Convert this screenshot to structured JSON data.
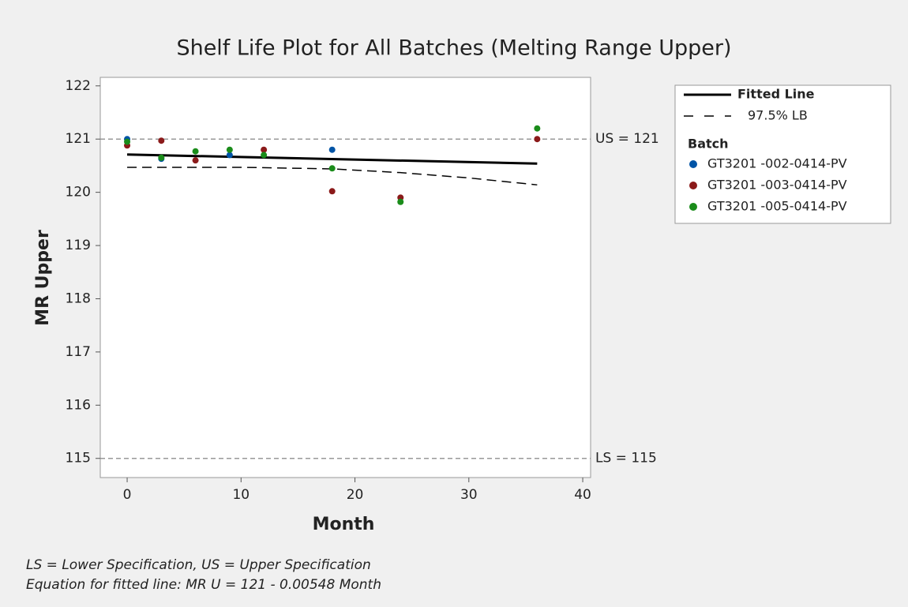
{
  "chart_data": {
    "type": "scatter",
    "title": "Shelf Life Plot for All Batches (Melting Range Upper)",
    "x_label": "Month",
    "y_label": "MR Upper",
    "xlim": [
      -2.36,
      40.69
    ],
    "xticks": [
      0,
      10,
      20,
      30,
      40
    ],
    "ylim": [
      114.64,
      122.16
    ],
    "yticks": [
      115,
      116,
      117,
      118,
      119,
      120,
      121,
      122
    ],
    "reference_lines": [
      {
        "value": 121,
        "label": "US = 121"
      },
      {
        "value": 115,
        "label": "LS = 115"
      }
    ],
    "legend_title": "Batch",
    "legend": "right",
    "series": [
      {
        "name": "Fitted Line",
        "kind": "line",
        "style": "solid",
        "color": "#000000",
        "x": [
          0,
          36
        ],
        "values": [
          120.71,
          120.54
        ]
      },
      {
        "name": "97.5% LB",
        "kind": "line",
        "style": "dashed",
        "color": "#000000",
        "x": [
          0,
          10,
          18,
          24,
          30,
          36
        ],
        "values": [
          120.47,
          120.47,
          120.44,
          120.37,
          120.27,
          120.14
        ]
      },
      {
        "name": "GT3201 -002-0414-PV",
        "kind": "scatter",
        "color": "#0054a6",
        "x": [
          0,
          3,
          9,
          18
        ],
        "values": [
          121.0,
          120.63,
          120.7,
          120.8
        ]
      },
      {
        "name": "GT3201 -003-0414-PV",
        "kind": "scatter",
        "color": "#8b1a1a",
        "x": [
          0,
          3,
          6,
          12,
          18,
          24,
          36
        ],
        "values": [
          120.88,
          120.97,
          120.6,
          120.8,
          120.02,
          119.9,
          121.0
        ]
      },
      {
        "name": "GT3201 -005-0414-PV",
        "kind": "scatter",
        "color": "#1a8c1a",
        "x": [
          0,
          3,
          6,
          9,
          12,
          18,
          24,
          36
        ],
        "values": [
          120.95,
          120.65,
          120.77,
          120.8,
          120.7,
          120.45,
          119.82,
          121.2
        ]
      }
    ],
    "footnotes": [
      "LS = Lower Specification, US = Upper Specification",
      "Equation for fitted line: MR U = 121 - 0.00548 Month"
    ]
  }
}
